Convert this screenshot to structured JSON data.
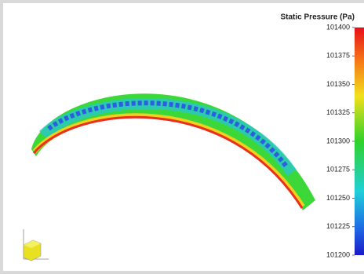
{
  "colorbar": {
    "title": "Static Pressure (Pa)",
    "range": [
      101200,
      101400
    ],
    "ticks": [
      101400,
      101375,
      101350,
      101325,
      101300,
      101275,
      101250,
      101225,
      101200
    ]
  }
}
